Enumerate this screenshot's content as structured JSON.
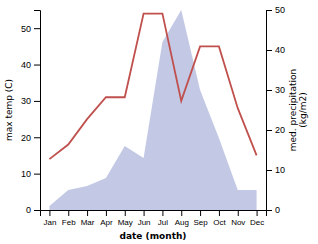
{
  "chart_data": {
    "type": "line",
    "categories": [
      "Jan",
      "Feb",
      "Mar",
      "Apr",
      "May",
      "Jun",
      "Jul",
      "Aug",
      "Sep",
      "Oct",
      "Nov",
      "Dec"
    ],
    "xlabel": "date (month)",
    "ylabel": "max temp (C)",
    "y2label": "med. precipitation\n(kg/m2)",
    "ylim": [
      0,
      55
    ],
    "yticks": [
      0,
      10,
      20,
      30,
      40,
      50
    ],
    "y2lim": [
      0,
      50
    ],
    "y2ticks": [
      0,
      10,
      20,
      30,
      40,
      50
    ],
    "series": [
      {
        "type": "area",
        "axis": "y2",
        "color": "#b8c0e0",
        "values": [
          1,
          5,
          6,
          8,
          16,
          13,
          42,
          50,
          30,
          18,
          5,
          5
        ]
      },
      {
        "type": "line",
        "color": "#c0504d",
        "values": [
          14,
          18,
          25,
          31,
          31,
          54,
          54,
          30,
          45,
          45,
          28,
          15
        ]
      }
    ]
  }
}
